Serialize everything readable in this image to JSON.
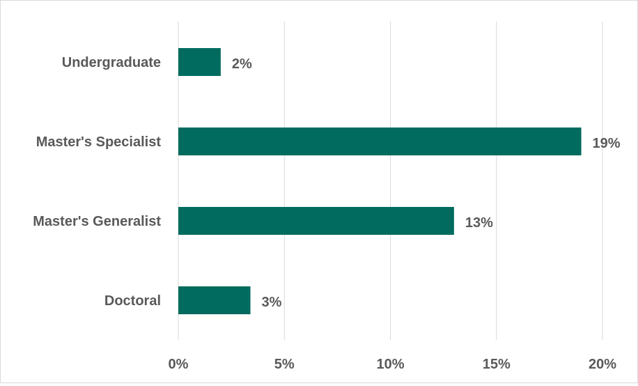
{
  "chart_data": {
    "type": "bar",
    "orientation": "horizontal",
    "title": "",
    "xlabel": "",
    "ylabel": "",
    "categories": [
      "Undergraduate",
      "Master's Specialist",
      "Master's Generalist",
      "Doctoral"
    ],
    "values": [
      2,
      19,
      13,
      3.4
    ],
    "data_labels": [
      "2%",
      "19%",
      "13%",
      "3%"
    ],
    "xlim": [
      0,
      20
    ],
    "ticks": [
      0,
      5,
      10,
      15,
      20
    ],
    "tick_labels": [
      "0%",
      "5%",
      "10%",
      "15%",
      "20%"
    ],
    "grid": "vertical",
    "legend": "none",
    "colors": {
      "bar": "#006b5e",
      "grid": "#d9d9d9",
      "text": "#595959"
    }
  }
}
